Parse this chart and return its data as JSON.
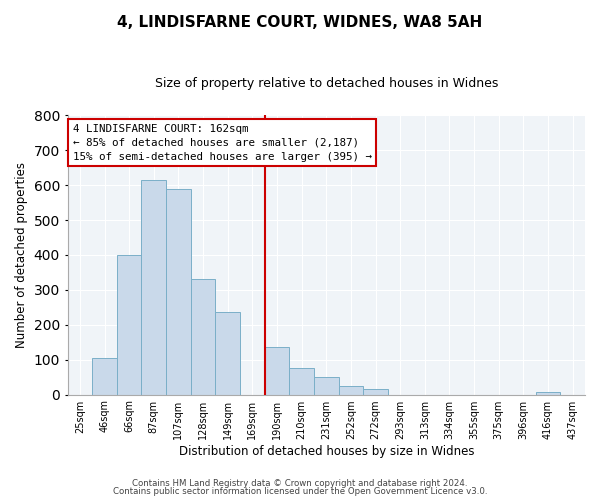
{
  "title": "4, LINDISFARNE COURT, WIDNES, WA8 5AH",
  "subtitle": "Size of property relative to detached houses in Widnes",
  "xlabel": "Distribution of detached houses by size in Widnes",
  "ylabel": "Number of detached properties",
  "bar_labels": [
    "25sqm",
    "46sqm",
    "66sqm",
    "87sqm",
    "107sqm",
    "128sqm",
    "149sqm",
    "169sqm",
    "190sqm",
    "210sqm",
    "231sqm",
    "252sqm",
    "272sqm",
    "293sqm",
    "313sqm",
    "334sqm",
    "355sqm",
    "375sqm",
    "396sqm",
    "416sqm",
    "437sqm"
  ],
  "bar_values": [
    0,
    105,
    400,
    615,
    590,
    330,
    237,
    0,
    135,
    77,
    50,
    25,
    15,
    0,
    0,
    0,
    0,
    0,
    0,
    8,
    0
  ],
  "bar_color": "#c9d9ea",
  "bar_edge_color": "#7aafc8",
  "vline_color": "#cc0000",
  "ylim": [
    0,
    800
  ],
  "yticks": [
    0,
    100,
    200,
    300,
    400,
    500,
    600,
    700,
    800
  ],
  "annotation_title": "4 LINDISFARNE COURT: 162sqm",
  "annotation_line1": "← 85% of detached houses are smaller (2,187)",
  "annotation_line2": "15% of semi-detached houses are larger (395) →",
  "annotation_box_color": "#ffffff",
  "annotation_box_edge": "#cc0000",
  "footer1": "Contains HM Land Registry data © Crown copyright and database right 2024.",
  "footer2": "Contains public sector information licensed under the Open Government Licence v3.0.",
  "background_color": "#ffffff",
  "plot_bg_color": "#f0f4f8",
  "grid_color": "#ffffff",
  "vline_index": 7.5
}
